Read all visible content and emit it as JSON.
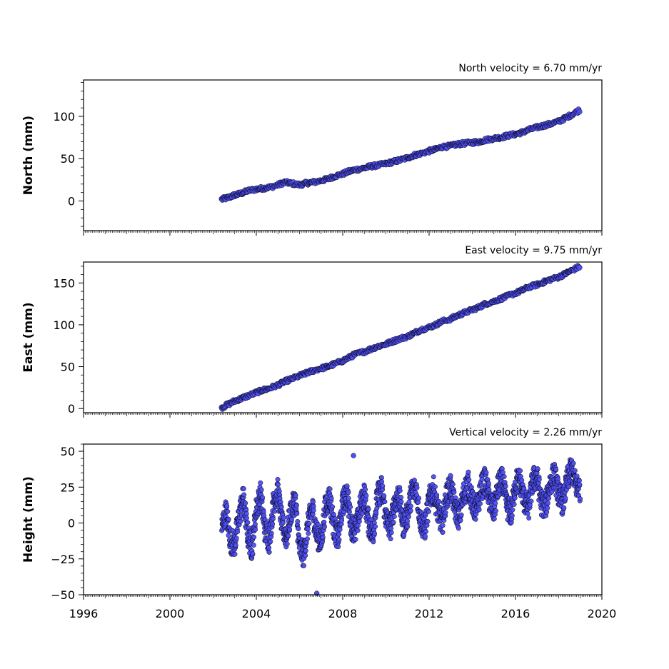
{
  "chart_data": [
    {
      "type": "scatter",
      "title": "North velocity = 6.70 mm/yr",
      "xlabel": "",
      "ylabel": "North (mm)",
      "xlim": [
        1996,
        2020
      ],
      "ylim": [
        -35,
        143
      ],
      "y_ticks": [
        0,
        50,
        100
      ],
      "y_tick_labels": [
        "0",
        "50",
        "100"
      ],
      "show_x_tick_labels": false,
      "grid": false,
      "marker_color": "#4e4ef2",
      "marker_edge_color": "#000000",
      "series": [
        {
          "x": [
            2002.4,
            2002.7,
            2003.0,
            2003.3,
            2003.6,
            2004.0,
            2004.3,
            2004.6,
            2005.0,
            2005.3,
            2005.6,
            2006.0,
            2006.3,
            2006.6,
            2007.0,
            2007.3,
            2007.6,
            2008.0,
            2008.3,
            2008.6,
            2009.0,
            2009.3,
            2009.6,
            2010.0,
            2010.3,
            2010.6,
            2011.0,
            2011.3,
            2011.6,
            2012.0,
            2012.3,
            2012.6,
            2013.0,
            2013.3,
            2013.6,
            2014.0,
            2014.3,
            2014.6,
            2015.0,
            2015.3,
            2015.6,
            2016.0,
            2016.3,
            2016.6,
            2017.0,
            2017.3,
            2017.6,
            2018.0,
            2018.3,
            2018.6,
            2019.0
          ],
          "y": [
            2,
            4,
            7,
            9,
            12,
            14,
            15,
            16,
            19,
            22,
            21,
            19,
            21,
            22,
            24,
            26,
            29,
            32,
            35,
            37,
            39,
            41,
            42,
            44,
            46,
            48,
            51,
            54,
            56,
            59,
            61,
            64,
            65,
            67,
            68,
            69,
            70,
            72,
            74,
            75,
            77,
            79,
            81,
            84,
            87,
            89,
            91,
            94,
            98,
            102,
            108
          ]
        }
      ]
    },
    {
      "type": "scatter",
      "title": "East velocity = 9.75 mm/yr",
      "xlabel": "",
      "ylabel": "East (mm)",
      "xlim": [
        1996,
        2020
      ],
      "ylim": [
        -5,
        175
      ],
      "y_ticks": [
        0,
        50,
        100,
        150
      ],
      "y_tick_labels": [
        "0",
        "50",
        "100",
        "150"
      ],
      "show_x_tick_labels": false,
      "grid": false,
      "marker_color": "#4e4ef2",
      "marker_edge_color": "#000000",
      "series": [
        {
          "x": [
            2002.4,
            2002.7,
            2003.0,
            2003.3,
            2003.6,
            2004.0,
            2004.3,
            2004.6,
            2005.0,
            2005.3,
            2005.6,
            2006.0,
            2006.3,
            2006.6,
            2007.0,
            2007.3,
            2007.6,
            2008.0,
            2008.3,
            2008.6,
            2009.0,
            2009.3,
            2009.6,
            2010.0,
            2010.3,
            2010.6,
            2011.0,
            2011.3,
            2011.6,
            2012.0,
            2012.3,
            2012.6,
            2013.0,
            2013.3,
            2013.6,
            2014.0,
            2014.3,
            2014.6,
            2015.0,
            2015.3,
            2015.6,
            2016.0,
            2016.3,
            2016.6,
            2017.0,
            2017.3,
            2017.6,
            2018.0,
            2018.3,
            2018.6,
            2019.0
          ],
          "y": [
            1,
            5,
            9,
            12,
            15,
            19,
            22,
            24,
            28,
            32,
            35,
            39,
            42,
            45,
            48,
            50,
            53,
            57,
            61,
            65,
            68,
            71,
            74,
            77,
            80,
            83,
            86,
            90,
            94,
            97,
            100,
            104,
            107,
            111,
            114,
            118,
            121,
            125,
            128,
            131,
            134,
            138,
            141,
            145,
            148,
            151,
            154,
            157,
            161,
            165,
            170
          ]
        }
      ]
    },
    {
      "type": "scatter",
      "title": "Vertical velocity = 2.26 mm/yr",
      "xlabel": "",
      "ylabel": "Height (mm)",
      "xlim": [
        1996,
        2020
      ],
      "ylim": [
        -50,
        55
      ],
      "y_ticks": [
        -50,
        -25,
        0,
        25,
        50
      ],
      "y_tick_labels": [
        "−50",
        "−25",
        "0",
        "25",
        "50"
      ],
      "x_ticks": [
        1996,
        2000,
        2004,
        2008,
        2012,
        2016,
        2020
      ],
      "x_tick_labels": [
        "1996",
        "2000",
        "2004",
        "2008",
        "2012",
        "2016",
        "2020"
      ],
      "show_x_tick_labels": true,
      "grid": false,
      "marker_color": "#4e4ef2",
      "marker_edge_color": "#000000",
      "series": [
        {
          "x": [
            2002.4,
            2002.6,
            2002.8,
            2003.0,
            2003.2,
            2003.4,
            2003.6,
            2003.8,
            2004.0,
            2004.2,
            2004.4,
            2004.6,
            2004.8,
            2005.0,
            2005.2,
            2005.4,
            2005.6,
            2005.8,
            2006.0,
            2006.2,
            2006.4,
            2006.6,
            2006.8,
            2007.0,
            2007.2,
            2007.4,
            2007.6,
            2007.8,
            2008.0,
            2008.2,
            2008.4,
            2008.6,
            2008.8,
            2009.0,
            2009.2,
            2009.4,
            2009.6,
            2009.8,
            2010.0,
            2010.2,
            2010.4,
            2010.6,
            2010.8,
            2011.0,
            2011.2,
            2011.4,
            2011.6,
            2011.8,
            2012.0,
            2012.2,
            2012.4,
            2012.6,
            2012.8,
            2013.0,
            2013.2,
            2013.4,
            2013.6,
            2013.8,
            2014.0,
            2014.2,
            2014.4,
            2014.6,
            2014.8,
            2015.0,
            2015.2,
            2015.4,
            2015.6,
            2015.8,
            2016.0,
            2016.2,
            2016.4,
            2016.6,
            2016.8,
            2017.0,
            2017.2,
            2017.4,
            2017.6,
            2017.8,
            2018.0,
            2018.2,
            2018.4,
            2018.6,
            2018.8,
            2019.0,
            2006.8,
            2008.5
          ],
          "y": [
            -3,
            8,
            -12,
            -15,
            5,
            18,
            -8,
            -18,
            10,
            20,
            -5,
            -12,
            15,
            22,
            -2,
            -10,
            8,
            16,
            -18,
            -22,
            0,
            10,
            -8,
            -14,
            12,
            18,
            -4,
            -10,
            14,
            20,
            -2,
            -6,
            10,
            20,
            0,
            -8,
            18,
            24,
            4,
            -4,
            14,
            20,
            -2,
            6,
            22,
            24,
            2,
            -4,
            16,
            24,
            8,
            0,
            18,
            26,
            10,
            4,
            20,
            28,
            14,
            8,
            24,
            30,
            16,
            8,
            26,
            30,
            12,
            6,
            28,
            30,
            16,
            10,
            30,
            32,
            14,
            12,
            28,
            34,
            20,
            14,
            30,
            38,
            26,
            24,
            -49,
            47
          ]
        }
      ]
    }
  ]
}
